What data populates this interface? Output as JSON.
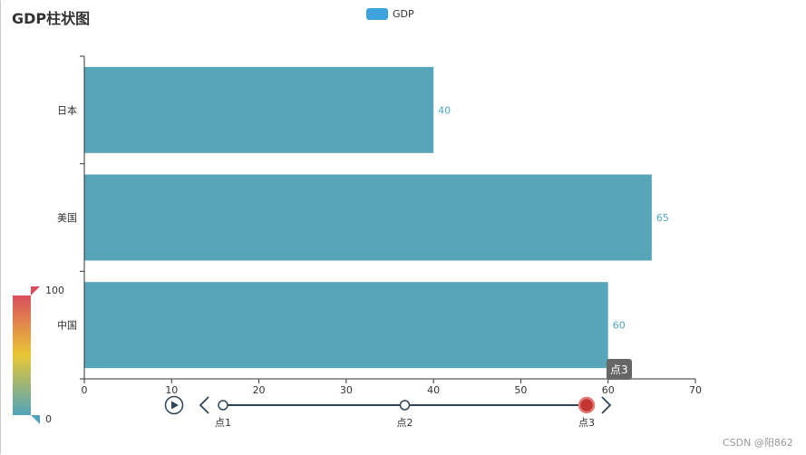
{
  "title": "GDP柱状图",
  "legend": {
    "label": "GDP",
    "color": "#3ea3dd"
  },
  "chart_data": {
    "type": "bar",
    "orientation": "horizontal",
    "categories": [
      "中国",
      "美国",
      "日本"
    ],
    "series": [
      {
        "name": "GDP",
        "values": [
          60,
          65,
          40
        ],
        "color": "#56a5b8"
      }
    ],
    "xlim": [
      0,
      70
    ],
    "xticks": [
      0,
      10,
      20,
      30,
      40,
      50,
      60,
      70
    ],
    "data_labels": true,
    "label_color": "#4ea6c0"
  },
  "visual_map": {
    "min": "0",
    "max": "100",
    "colors": [
      "#d94e5d",
      "#eac736",
      "#50a3ba"
    ]
  },
  "timeline": {
    "points": [
      "点1",
      "点2",
      "点3"
    ],
    "current_index": 2,
    "tooltip": "点3",
    "line_color": "#304654",
    "active_color": "#c23531"
  },
  "watermark": "CSDN @阳862"
}
